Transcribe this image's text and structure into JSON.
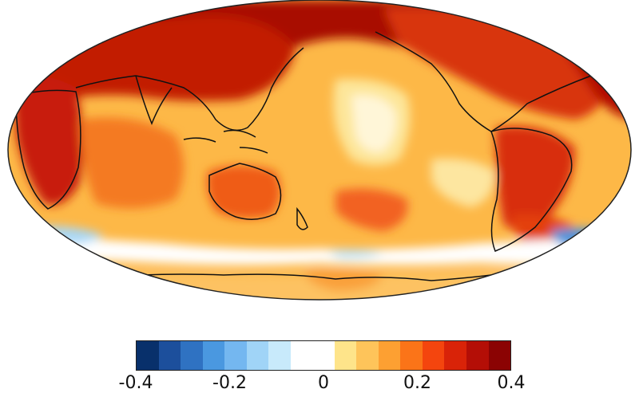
{
  "colorbar": {
    "colors": [
      "#08306b",
      "#1c4f9c",
      "#2f72c2",
      "#4a98e0",
      "#74b7f0",
      "#a0d4f7",
      "#c8eafb",
      "#ffffff",
      "#ffffff",
      "#fee48a",
      "#fec45a",
      "#fda032",
      "#fb7418",
      "#f4450e",
      "#d92308",
      "#b40e06",
      "#8b0303"
    ],
    "ticks": [
      "-0.4",
      "-0.2",
      "0",
      "0.2",
      "0.4"
    ]
  },
  "map": {
    "projection": "robinson",
    "center_longitude": 150,
    "ocean_base_color": "#fdb847",
    "coastline_color": "#111111"
  }
}
